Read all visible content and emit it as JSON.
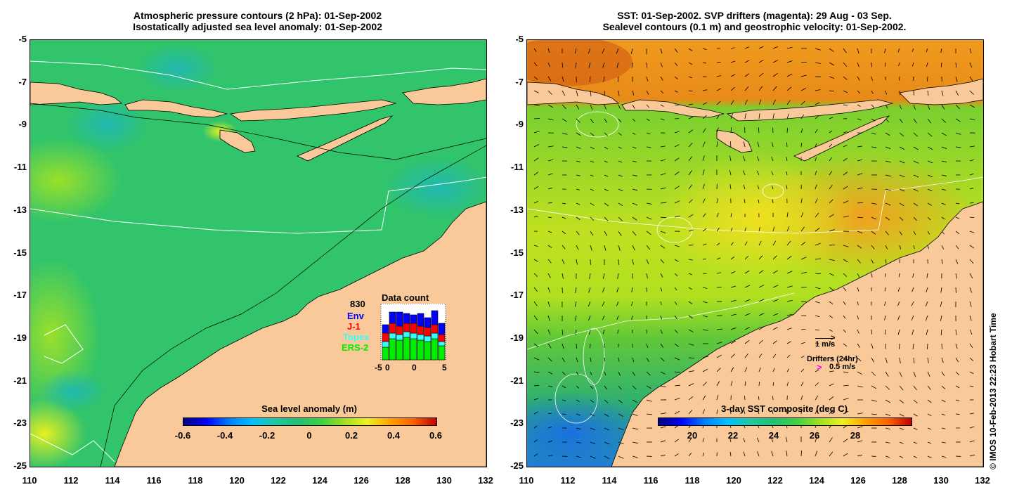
{
  "left_panel": {
    "title_line1": "Atmospheric pressure contours (2 hPa): 01-Sep-2002",
    "title_line2": "Isostatically adjusted sea level anomaly: 01-Sep-2002",
    "colorbar_label": "Sea level anomaly (m)",
    "colorbar_ticks": [
      "-0.6",
      "-0.4",
      "-0.2",
      "0",
      "0.2",
      "0.4",
      "0.6"
    ],
    "data_count": {
      "title": "Data count",
      "total": "830",
      "legend": [
        {
          "name": "Env",
          "color": "#0000ff"
        },
        {
          "name": "J-1",
          "color": "#ff0000"
        },
        {
          "name": "Topex",
          "color": "#33ffff"
        },
        {
          "name": "ERS-2",
          "color": "#00ee00"
        }
      ],
      "x_ticks": [
        "-5",
        "0",
        "5"
      ],
      "x_tick_extra": "0"
    }
  },
  "right_panel": {
    "title_line1": "SST: 01-Sep-2002. SVP drifters (magenta): 29 Aug - 03 Sep.",
    "title_line2": "Sealevel contours (0.1 m) and geostrophic velocity: 01-Sep-2002.",
    "scale_label": "1 m/s",
    "drifters_label": "Drifters (24hr)",
    "drifter_speed": "0.5 m/s",
    "drifter_symbol": ">",
    "colorbar_label": "3-day SST composite (deg C)",
    "colorbar_ticks": [
      "20",
      "22",
      "24",
      "26",
      "28"
    ]
  },
  "axes": {
    "y_ticks": [
      "-5",
      "-7",
      "-9",
      "-11",
      "-13",
      "-15",
      "-17",
      "-19",
      "-21",
      "-23",
      "-25"
    ],
    "x_ticks": [
      "110",
      "112",
      "114",
      "116",
      "118",
      "120",
      "122",
      "124",
      "126",
      "128",
      "130",
      "132"
    ]
  },
  "credit": "© IMOS 10-Feb-2013 22:23 Hobart Time",
  "colors": {
    "land": "#f9c99a",
    "ocean_green": "#2fc86a",
    "ocean_sst": "#9ad82a",
    "sst_warm": "#f0a020"
  }
}
